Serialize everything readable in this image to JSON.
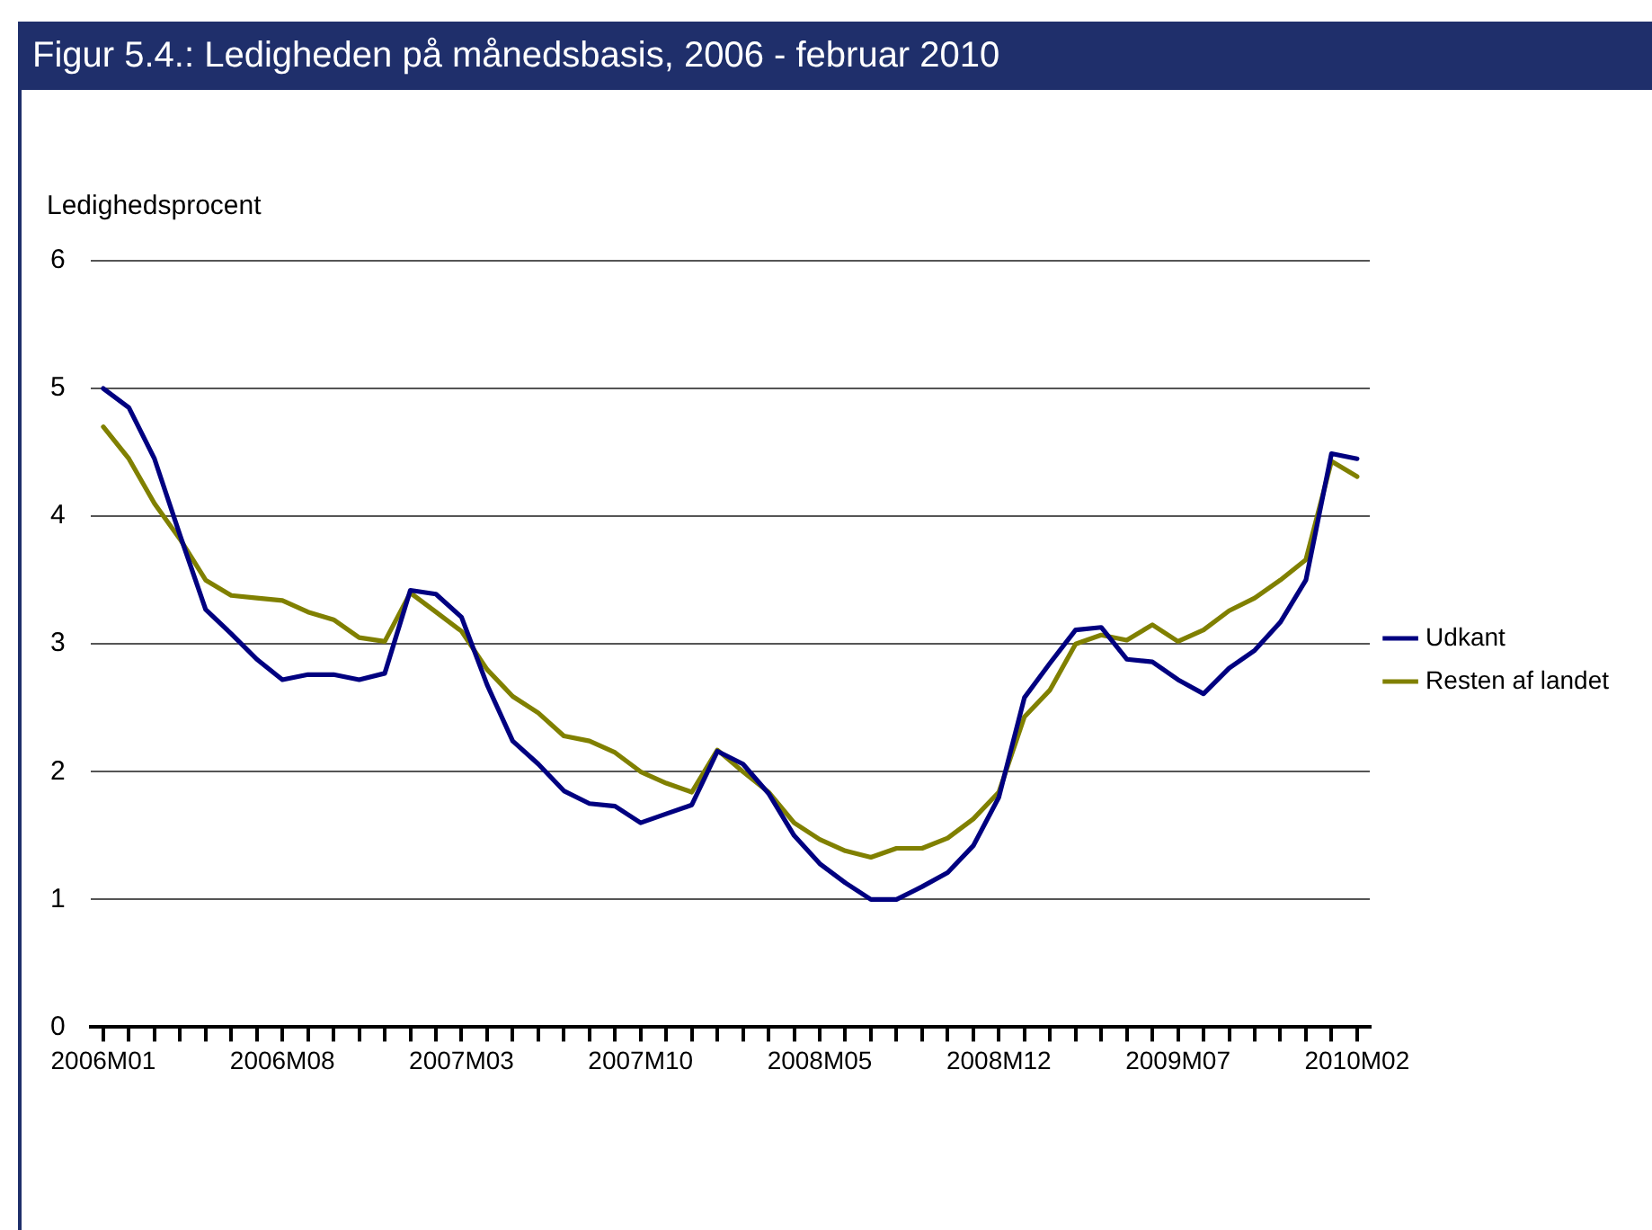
{
  "chart_data": {
    "type": "line",
    "title": "Figur 5.4.: Ledigheden på månedsbasis, 2006 - februar 2010",
    "ylabel": "Ledighedsprocent",
    "categories": [
      "2006M01",
      null,
      null,
      null,
      null,
      null,
      null,
      "2006M08",
      null,
      null,
      null,
      null,
      null,
      null,
      "2007M03",
      null,
      null,
      null,
      null,
      null,
      null,
      "2007M10",
      null,
      null,
      null,
      null,
      null,
      null,
      "2008M05",
      null,
      null,
      null,
      null,
      null,
      null,
      "2008M12",
      null,
      null,
      null,
      null,
      null,
      null,
      "2009M07",
      null,
      null,
      null,
      null,
      null,
      null,
      "2010M02"
    ],
    "series": [
      {
        "name": "Udkant",
        "color": "#000080",
        "values": [
          5.0,
          4.85,
          4.45,
          3.85,
          3.27,
          3.08,
          2.88,
          2.72,
          2.76,
          2.76,
          2.72,
          2.77,
          3.42,
          3.39,
          3.21,
          2.68,
          2.24,
          2.06,
          1.85,
          1.75,
          1.73,
          1.6,
          1.67,
          1.74,
          2.16,
          2.06,
          1.83,
          1.5,
          1.28,
          1.13,
          1.0,
          1.0,
          1.1,
          1.21,
          1.42,
          1.8,
          2.58,
          2.85,
          3.11,
          3.13,
          2.88,
          2.86,
          2.72,
          2.61,
          2.81,
          2.95,
          3.17,
          3.5,
          4.49,
          4.45
        ]
      },
      {
        "name": "Resten af landet",
        "color": "#808000",
        "values": [
          4.7,
          4.45,
          4.1,
          3.82,
          3.5,
          3.38,
          3.36,
          3.34,
          3.25,
          3.19,
          3.05,
          3.02,
          3.4,
          3.25,
          3.1,
          2.8,
          2.59,
          2.46,
          2.28,
          2.24,
          2.15,
          2.0,
          1.91,
          1.84,
          2.17,
          2.0,
          1.84,
          1.6,
          1.47,
          1.38,
          1.33,
          1.4,
          1.4,
          1.48,
          1.63,
          1.84,
          2.43,
          2.64,
          3.0,
          3.07,
          3.03,
          3.15,
          3.02,
          3.11,
          3.26,
          3.36,
          3.5,
          3.66,
          4.43,
          4.31
        ]
      }
    ],
    "ylim": [
      0,
      6
    ],
    "yticks": [
      0,
      1,
      2,
      3,
      4,
      5,
      6
    ],
    "grid": "y",
    "legend": "right",
    "marker": "none",
    "line_style": "solid"
  }
}
